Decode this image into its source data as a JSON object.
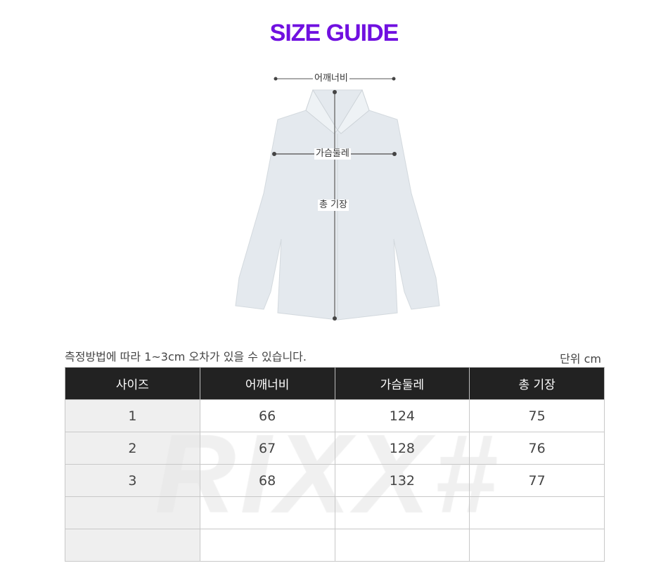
{
  "title": "SIZE GUIDE",
  "colors": {
    "title": "#7010e0",
    "header_bg": "#222222",
    "first_col_bg": "#efefef"
  },
  "diagram": {
    "labels": {
      "shoulder": "어깨너비",
      "chest": "가슴둘레",
      "length": "총 기장"
    }
  },
  "note": "측정방법에 따라 1~3cm 오차가 있을 수 있습니다.",
  "unit": "단위 cm",
  "watermark": "RIXX#",
  "table": {
    "headers": [
      "사이즈",
      "어깨너비",
      "가슴둘레",
      "총 기장"
    ],
    "rows": [
      [
        "1",
        "66",
        "124",
        "75"
      ],
      [
        "2",
        "67",
        "128",
        "76"
      ],
      [
        "3",
        "68",
        "132",
        "77"
      ],
      [
        "",
        "",
        "",
        ""
      ],
      [
        "",
        "",
        "",
        ""
      ]
    ]
  }
}
